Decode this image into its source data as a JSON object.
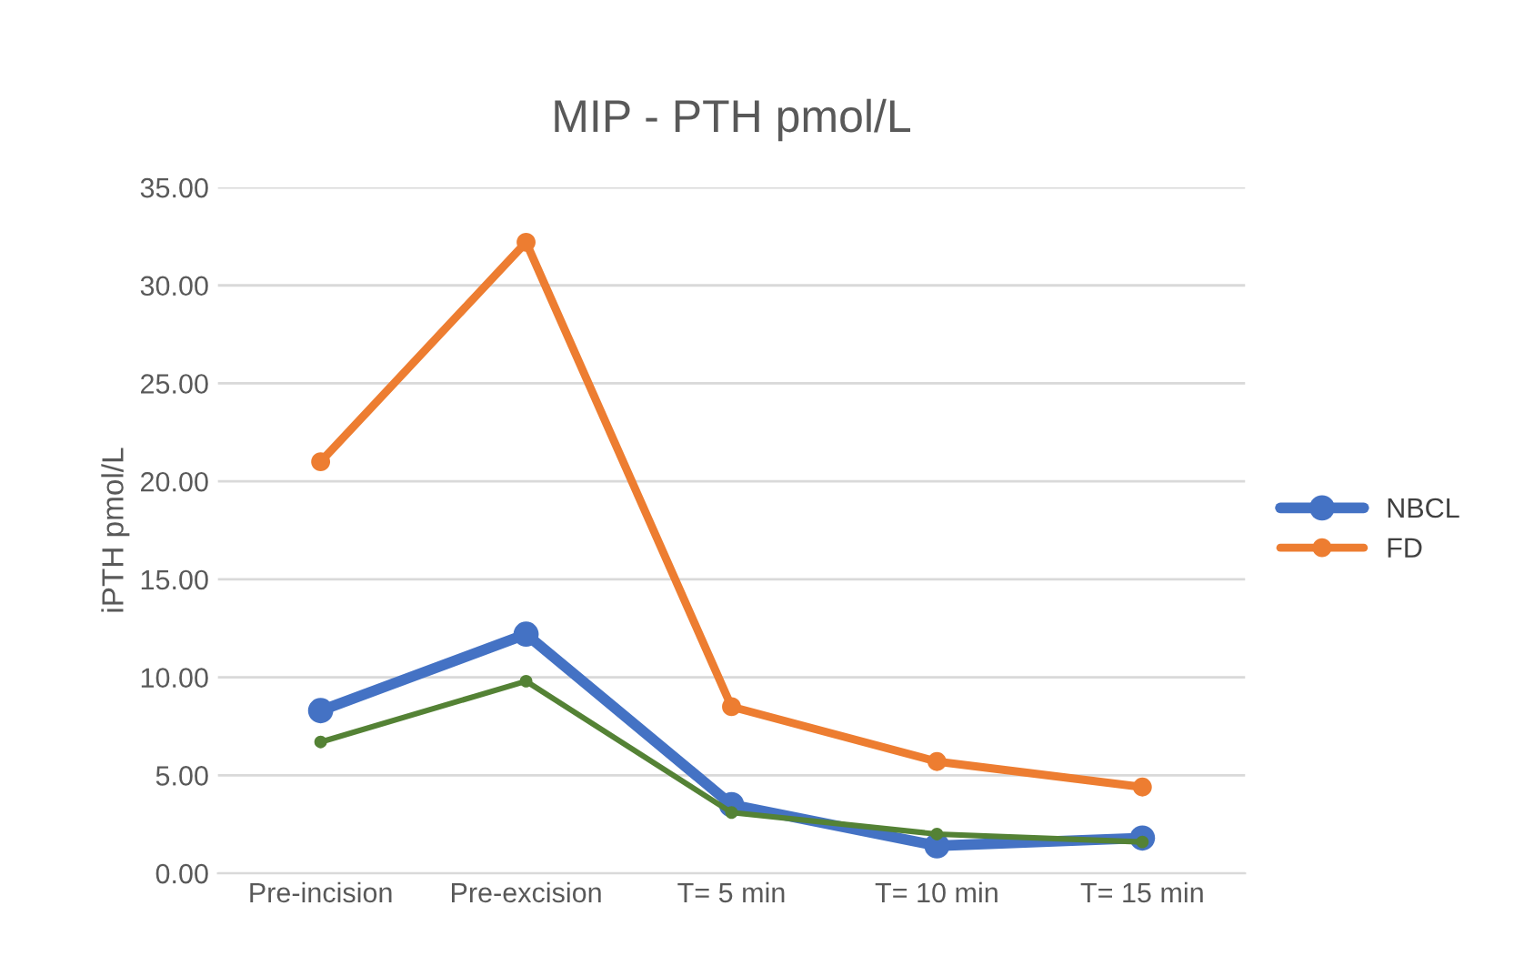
{
  "chart_data": {
    "type": "line",
    "title": "MIP - PTH pmol/L",
    "ylabel": "iPTH pmol/L",
    "categories": [
      "Pre-incision",
      "Pre-excision",
      "T= 5 min",
      "T= 10 min",
      "T= 15 min"
    ],
    "series": [
      {
        "name": "NBCL",
        "color": "#4472c4",
        "values": [
          8.3,
          12.2,
          3.5,
          1.4,
          1.8
        ]
      },
      {
        "name": "FD",
        "color": "#ed7d31",
        "values": [
          21.0,
          32.2,
          8.5,
          5.7,
          4.4
        ]
      },
      {
        "color": "#548235",
        "values": [
          6.7,
          9.8,
          3.1,
          2.0,
          1.6
        ]
      }
    ],
    "ylim": [
      0,
      35
    ],
    "yticks": [
      {
        "value": 0,
        "label": "0.00"
      },
      {
        "value": 5,
        "label": "5.00"
      },
      {
        "value": 10,
        "label": "10.00"
      },
      {
        "value": 15,
        "label": "15.00"
      },
      {
        "value": 20,
        "label": "20.00"
      },
      {
        "value": 25,
        "label": "25.00"
      },
      {
        "value": 30,
        "label": "30.00"
      },
      {
        "value": 35,
        "label": "35.00"
      }
    ],
    "grid": "y",
    "legend": "right",
    "marker": "circle",
    "line_style": "solid"
  }
}
